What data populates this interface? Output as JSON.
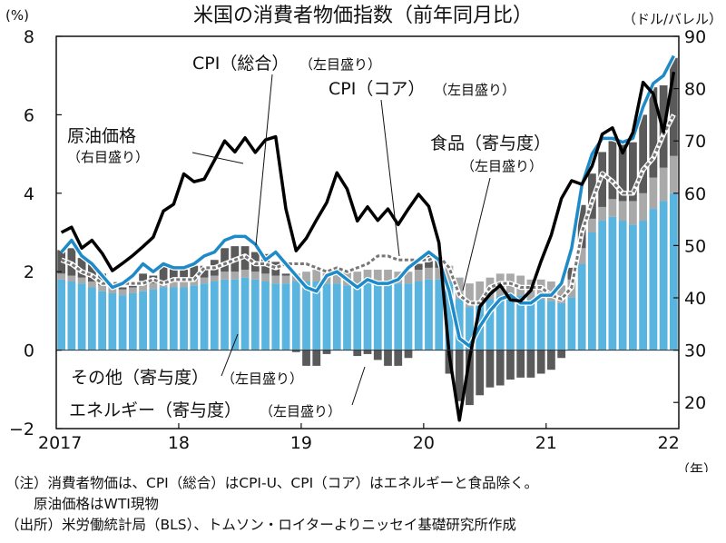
{
  "chart_data": {
    "type": "bar",
    "title": "米国の消費者物価指数（前年同月比）",
    "left_unit": "(%)",
    "right_unit": "（ドル/バレル）",
    "year_unit": "（年）",
    "x_ticks": [
      "2017",
      "18",
      "19",
      "20",
      "21",
      "22"
    ],
    "y_left_ticks": [
      "8",
      "6",
      "4",
      "2",
      "0",
      "−2"
    ],
    "y_right_ticks": [
      "90",
      "80",
      "70",
      "60",
      "50",
      "40",
      "30",
      "20"
    ],
    "ylim_left": [
      -2,
      8
    ],
    "ylim_right": [
      15,
      90
    ],
    "months": [
      "2017-01",
      "2017-02",
      "2017-03",
      "2017-04",
      "2017-05",
      "2017-06",
      "2017-07",
      "2017-08",
      "2017-09",
      "2017-10",
      "2017-11",
      "2017-12",
      "2018-01",
      "2018-02",
      "2018-03",
      "2018-04",
      "2018-05",
      "2018-06",
      "2018-07",
      "2018-08",
      "2018-09",
      "2018-10",
      "2018-11",
      "2018-12",
      "2019-01",
      "2019-02",
      "2019-03",
      "2019-04",
      "2019-05",
      "2019-06",
      "2019-07",
      "2019-08",
      "2019-09",
      "2019-10",
      "2019-11",
      "2019-12",
      "2020-01",
      "2020-02",
      "2020-03",
      "2020-04",
      "2020-05",
      "2020-06",
      "2020-07",
      "2020-08",
      "2020-09",
      "2020-10",
      "2020-11",
      "2020-12",
      "2021-01",
      "2021-02",
      "2021-03",
      "2021-04",
      "2021-05",
      "2021-06",
      "2021-07",
      "2021-08",
      "2021-09",
      "2021-10",
      "2021-11",
      "2021-12",
      "2022-01"
    ],
    "series": [
      {
        "name": "その他",
        "role": "bar",
        "values": [
          1.8,
          1.75,
          1.7,
          1.6,
          1.5,
          1.45,
          1.4,
          1.45,
          1.5,
          1.55,
          1.6,
          1.6,
          1.6,
          1.65,
          1.7,
          1.75,
          1.8,
          1.8,
          1.85,
          1.8,
          1.75,
          1.7,
          1.7,
          1.75,
          1.75,
          1.75,
          1.7,
          1.7,
          1.65,
          1.7,
          1.75,
          1.75,
          1.75,
          1.7,
          1.7,
          1.75,
          1.8,
          1.8,
          1.75,
          1.3,
          1.1,
          1.15,
          1.3,
          1.4,
          1.4,
          1.4,
          1.3,
          1.3,
          1.25,
          1.2,
          1.35,
          2.2,
          3.0,
          3.3,
          3.4,
          3.3,
          3.2,
          3.3,
          3.6,
          3.8,
          4.0
        ]
      },
      {
        "name": "食品",
        "role": "bar",
        "values": [
          0.15,
          0.15,
          0.15,
          0.15,
          0.15,
          0.15,
          0.15,
          0.15,
          0.15,
          0.15,
          0.15,
          0.15,
          0.15,
          0.15,
          0.15,
          0.15,
          0.2,
          0.2,
          0.2,
          0.2,
          0.2,
          0.2,
          0.2,
          0.2,
          0.25,
          0.3,
          0.3,
          0.3,
          0.3,
          0.3,
          0.3,
          0.3,
          0.3,
          0.3,
          0.3,
          0.3,
          0.3,
          0.3,
          0.4,
          0.55,
          0.6,
          0.6,
          0.55,
          0.55,
          0.55,
          0.5,
          0.5,
          0.5,
          0.5,
          0.45,
          0.45,
          0.4,
          0.35,
          0.35,
          0.45,
          0.5,
          0.6,
          0.7,
          0.8,
          0.85,
          0.95
        ]
      },
      {
        "name": "エネルギー",
        "role": "bar",
        "values": [
          0.6,
          0.7,
          0.5,
          0.45,
          0.3,
          0.1,
          0.05,
          0.1,
          0.3,
          0.2,
          0.4,
          0.35,
          0.3,
          0.35,
          0.3,
          0.4,
          0.6,
          0.65,
          0.6,
          0.5,
          0.5,
          0.35,
          0.05,
          -0.05,
          -0.4,
          -0.4,
          -0.1,
          0.1,
          0.05,
          -0.15,
          -0.1,
          -0.25,
          -0.4,
          -0.4,
          -0.2,
          0.15,
          0.4,
          0.25,
          -0.6,
          -1.3,
          -1.4,
          -1.15,
          -0.95,
          -0.9,
          -0.75,
          -0.7,
          -0.7,
          -0.6,
          -0.5,
          -0.2,
          0.3,
          1.1,
          1.15,
          1.4,
          1.55,
          1.55,
          1.5,
          2.0,
          2.3,
          2.1,
          2.5
        ]
      },
      {
        "name": "CPI（総合）",
        "role": "line",
        "values": [
          2.5,
          2.8,
          2.4,
          2.2,
          1.9,
          1.6,
          1.7,
          1.9,
          2.2,
          2.0,
          2.2,
          2.1,
          2.1,
          2.2,
          2.4,
          2.5,
          2.8,
          2.9,
          2.9,
          2.7,
          2.3,
          2.5,
          2.2,
          1.9,
          1.6,
          1.5,
          1.9,
          2.0,
          1.8,
          1.6,
          1.8,
          1.7,
          1.7,
          1.8,
          2.1,
          2.3,
          2.5,
          2.3,
          1.5,
          0.3,
          0.1,
          0.6,
          1.0,
          1.3,
          1.4,
          1.2,
          1.2,
          1.4,
          1.4,
          1.7,
          2.6,
          4.2,
          5.0,
          5.4,
          5.4,
          5.3,
          5.4,
          6.2,
          6.8,
          7.0,
          7.5
        ]
      },
      {
        "name": "CPI（コア）",
        "role": "line",
        "values": [
          2.3,
          2.2,
          2.0,
          1.9,
          1.7,
          1.7,
          1.7,
          1.7,
          1.7,
          1.8,
          1.7,
          1.8,
          1.8,
          1.8,
          2.1,
          2.1,
          2.2,
          2.3,
          2.4,
          2.2,
          2.2,
          2.1,
          2.2,
          2.2,
          2.2,
          2.1,
          2.0,
          2.1,
          2.0,
          2.1,
          2.2,
          2.4,
          2.4,
          2.3,
          2.3,
          2.3,
          2.3,
          2.4,
          2.1,
          1.4,
          1.2,
          1.2,
          1.6,
          1.7,
          1.7,
          1.6,
          1.6,
          1.6,
          1.4,
          1.3,
          1.6,
          3.0,
          3.8,
          4.5,
          4.3,
          4.0,
          4.0,
          4.6,
          4.9,
          5.5,
          6.0
        ]
      },
      {
        "name": "原油価格",
        "role": "line",
        "axis": "right",
        "values": [
          52.5,
          53.5,
          49.5,
          51,
          48.5,
          45.2,
          46.6,
          48.1,
          49.8,
          51.6,
          56.6,
          57.9,
          63.7,
          62.2,
          62.7,
          66.3,
          70,
          67.9,
          70.6,
          67.8,
          70.2,
          70.8,
          57,
          49,
          51.4,
          54.9,
          58.2,
          63.9,
          60.8,
          54.7,
          57.4,
          54.8,
          57,
          54,
          57,
          59.8,
          57.5,
          50.5,
          29.2,
          16.6,
          28.5,
          38.3,
          40.7,
          42.4,
          39.6,
          39.4,
          41.4,
          47,
          52,
          59,
          62.4,
          61.7,
          65.2,
          71.3,
          72.5,
          67.7,
          71.6,
          81.2,
          79,
          71.7,
          83.2
        ]
      }
    ],
    "annotations": {
      "cpi_total": "CPI（総合）",
      "cpi_total_sub": "（左目盛り）",
      "cpi_core": "CPI（コア）",
      "cpi_core_sub": "（左目盛り）",
      "oil": "原油価格",
      "oil_sub": "（右目盛り）",
      "food": "食品（寄与度）",
      "food_sub": "（左目盛り）",
      "other": "その他（寄与度）",
      "other_sub": "（左目盛り）",
      "energy": "エネルギー（寄与度）",
      "energy_sub": "（左目盛り）"
    },
    "colors": {
      "other": "#5ab4e0",
      "food": "#a9a9a9",
      "energy": "#5a5a5a",
      "cpi_total": "#1e8bc8",
      "cpi_core": "#777777",
      "oil": "#000000"
    },
    "grid": false,
    "legend": "none"
  },
  "notes": {
    "line1": "（注）消費者物価は、CPI（総合）はCPI-U、CPI（コア）はエネルギーと食品除く。",
    "line2": "　　原油価格はWTI現物",
    "line3": "（出所）米労働統計局（BLS）、トムソン・ロイターよりニッセイ基礎研究所作成"
  }
}
